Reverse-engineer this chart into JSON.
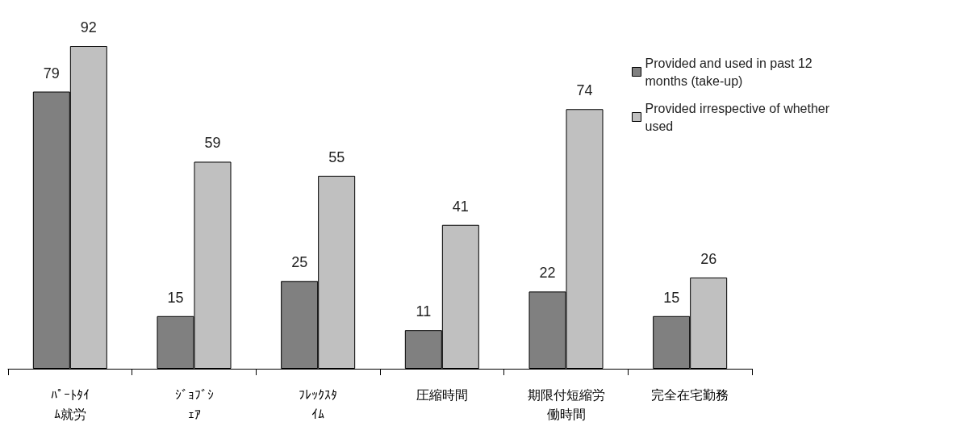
{
  "chart_data": {
    "type": "bar",
    "categories": [
      "ﾊﾟｰﾄﾀｲﾑ就労",
      "ｼﾞｮﾌﾞｼｪｱ",
      "ﾌﾚｯｸｽﾀｲﾑ",
      "圧縮時間",
      "期限付短縮労働時間",
      "完全在宅勤務"
    ],
    "series": [
      {
        "name": "Provided and used in past 12 months (take-up)",
        "color": "#808080",
        "values": [
          79,
          15,
          25,
          11,
          22,
          15
        ]
      },
      {
        "name": "Provided irrespective of whether used",
        "color": "#c0c0c0",
        "values": [
          92,
          59,
          55,
          41,
          74,
          26
        ]
      }
    ],
    "data_labels": true,
    "legend": "top right",
    "grid": false
  }
}
